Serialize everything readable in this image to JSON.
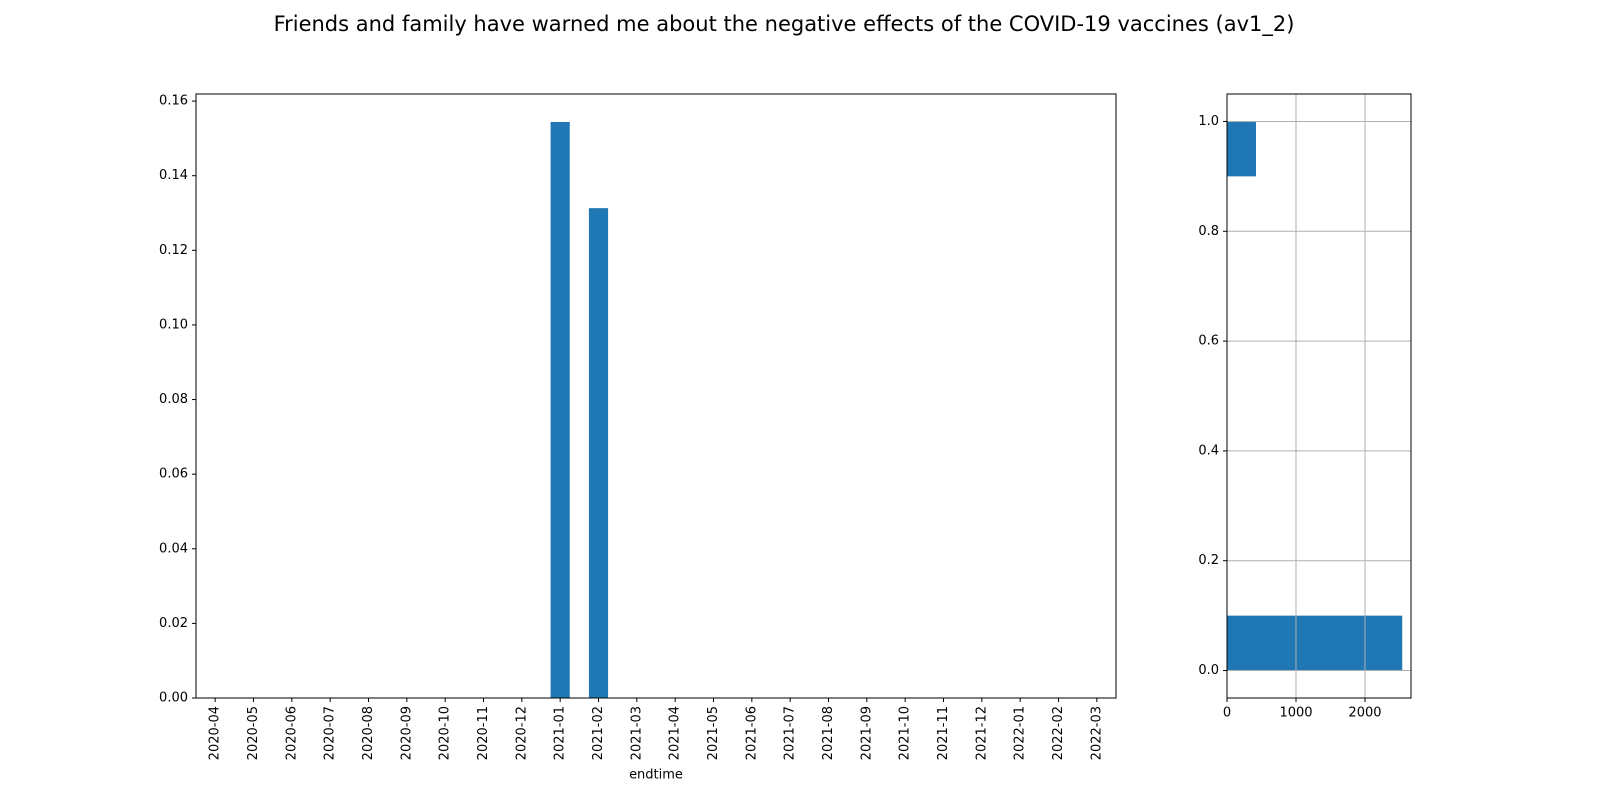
{
  "title": "Friends and family have warned me about the negative effects of the COVID-19 vaccines (av1_2)",
  "chart_data": [
    {
      "type": "bar",
      "x_label": "endtime",
      "categories": [
        "2020-04",
        "2020-05",
        "2020-06",
        "2020-07",
        "2020-08",
        "2020-09",
        "2020-10",
        "2020-11",
        "2020-12",
        "2021-01",
        "2021-02",
        "2021-03",
        "2021-04",
        "2021-05",
        "2021-06",
        "2021-07",
        "2021-08",
        "2021-09",
        "2021-10",
        "2021-11",
        "2021-12",
        "2022-01",
        "2022-02",
        "2022-03"
      ],
      "values": [
        0,
        0,
        0,
        0,
        0,
        0,
        0,
        0,
        0,
        0.1544,
        0.1313,
        0,
        0,
        0,
        0,
        0,
        0,
        0,
        0,
        0,
        0,
        0,
        0,
        0
      ],
      "color": "#1f77b4",
      "ylim": [
        0,
        0.1619
      ],
      "yticks": [
        {
          "value": 0,
          "label": "0.00"
        },
        0.02,
        0.04,
        0.06,
        0.08,
        {
          "value": 0.1,
          "label": "0.10"
        },
        0.12,
        0.14,
        0.16
      ],
      "grid": false
    },
    {
      "type": "histogram",
      "orientation": "horizontal",
      "bins": [
        0,
        0.1,
        0.2,
        0.3,
        0.4,
        0.5,
        0.6,
        0.7,
        0.8,
        0.9,
        1
      ],
      "values": [
        2540,
        0,
        0,
        0,
        0,
        0,
        0,
        0,
        0,
        420
      ],
      "color": "#1f77b4",
      "xlim": [
        0,
        2667
      ],
      "xticks": [
        0,
        1000,
        2000
      ],
      "ylim": [
        -0.05,
        1.05
      ],
      "yticks": [
        {
          "value": 0,
          "label": "0.0"
        },
        0.2,
        0.4,
        0.6,
        0.8,
        {
          "value": 1,
          "label": "1.0"
        }
      ],
      "grid": true
    }
  ]
}
